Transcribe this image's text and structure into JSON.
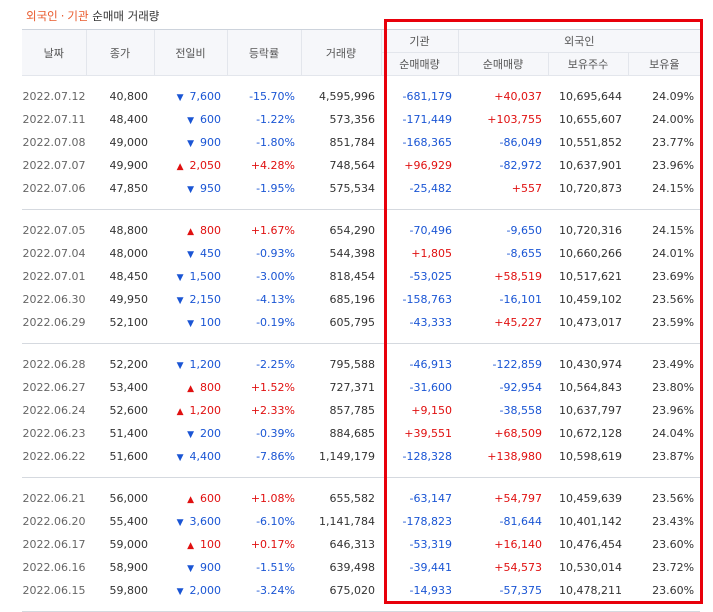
{
  "title": {
    "foreign": "외국인",
    "separator": "·",
    "institution": "기관",
    "rest": "순매매 거래량"
  },
  "headers": {
    "date": "날짜",
    "close": "종가",
    "change": "전일비",
    "rate": "등락률",
    "volume": "거래량",
    "institution_group": "기관",
    "foreign_group": "외국인",
    "inst_net": "순매매량",
    "foreign_net": "순매매량",
    "foreign_shares": "보유주수",
    "foreign_ratio": "보유율"
  },
  "colors": {
    "up": "#e01010",
    "down": "#1a55d4",
    "highlight_border": "#e8000b",
    "title_accent": "#e95a2c"
  },
  "icons": {
    "up": "▲",
    "down": "▼"
  },
  "groups": [
    [
      {
        "date": "2022.07.12",
        "close": "40,800",
        "dir": "down",
        "change": "7,600",
        "rate": "-15.70%",
        "volume": "4,595,996",
        "inst": "-681,179",
        "foreign": "+40,037",
        "shares": "10,695,644",
        "ratio": "24.09%"
      },
      {
        "date": "2022.07.11",
        "close": "48,400",
        "dir": "down",
        "change": "600",
        "rate": "-1.22%",
        "volume": "573,356",
        "inst": "-171,449",
        "foreign": "+103,755",
        "shares": "10,655,607",
        "ratio": "24.00%"
      },
      {
        "date": "2022.07.08",
        "close": "49,000",
        "dir": "down",
        "change": "900",
        "rate": "-1.80%",
        "volume": "851,784",
        "inst": "-168,365",
        "foreign": "-86,049",
        "shares": "10,551,852",
        "ratio": "23.77%"
      },
      {
        "date": "2022.07.07",
        "close": "49,900",
        "dir": "up",
        "change": "2,050",
        "rate": "+4.28%",
        "volume": "748,564",
        "inst": "+96,929",
        "foreign": "-82,972",
        "shares": "10,637,901",
        "ratio": "23.96%"
      },
      {
        "date": "2022.07.06",
        "close": "47,850",
        "dir": "down",
        "change": "950",
        "rate": "-1.95%",
        "volume": "575,534",
        "inst": "-25,482",
        "foreign": "+557",
        "shares": "10,720,873",
        "ratio": "24.15%"
      }
    ],
    [
      {
        "date": "2022.07.05",
        "close": "48,800",
        "dir": "up",
        "change": "800",
        "rate": "+1.67%",
        "volume": "654,290",
        "inst": "-70,496",
        "foreign": "-9,650",
        "shares": "10,720,316",
        "ratio": "24.15%"
      },
      {
        "date": "2022.07.04",
        "close": "48,000",
        "dir": "down",
        "change": "450",
        "rate": "-0.93%",
        "volume": "544,398",
        "inst": "+1,805",
        "foreign": "-8,655",
        "shares": "10,660,266",
        "ratio": "24.01%"
      },
      {
        "date": "2022.07.01",
        "close": "48,450",
        "dir": "down",
        "change": "1,500",
        "rate": "-3.00%",
        "volume": "818,454",
        "inst": "-53,025",
        "foreign": "+58,519",
        "shares": "10,517,621",
        "ratio": "23.69%"
      },
      {
        "date": "2022.06.30",
        "close": "49,950",
        "dir": "down",
        "change": "2,150",
        "rate": "-4.13%",
        "volume": "685,196",
        "inst": "-158,763",
        "foreign": "-16,101",
        "shares": "10,459,102",
        "ratio": "23.56%"
      },
      {
        "date": "2022.06.29",
        "close": "52,100",
        "dir": "down",
        "change": "100",
        "rate": "-0.19%",
        "volume": "605,795",
        "inst": "-43,333",
        "foreign": "+45,227",
        "shares": "10,473,017",
        "ratio": "23.59%"
      }
    ],
    [
      {
        "date": "2022.06.28",
        "close": "52,200",
        "dir": "down",
        "change": "1,200",
        "rate": "-2.25%",
        "volume": "795,588",
        "inst": "-46,913",
        "foreign": "-122,859",
        "shares": "10,430,974",
        "ratio": "23.49%"
      },
      {
        "date": "2022.06.27",
        "close": "53,400",
        "dir": "up",
        "change": "800",
        "rate": "+1.52%",
        "volume": "727,371",
        "inst": "-31,600",
        "foreign": "-92,954",
        "shares": "10,564,843",
        "ratio": "23.80%"
      },
      {
        "date": "2022.06.24",
        "close": "52,600",
        "dir": "up",
        "change": "1,200",
        "rate": "+2.33%",
        "volume": "857,785",
        "inst": "+9,150",
        "foreign": "-38,558",
        "shares": "10,637,797",
        "ratio": "23.96%"
      },
      {
        "date": "2022.06.23",
        "close": "51,400",
        "dir": "down",
        "change": "200",
        "rate": "-0.39%",
        "volume": "884,685",
        "inst": "+39,551",
        "foreign": "+68,509",
        "shares": "10,672,128",
        "ratio": "24.04%"
      },
      {
        "date": "2022.06.22",
        "close": "51,600",
        "dir": "down",
        "change": "4,400",
        "rate": "-7.86%",
        "volume": "1,149,179",
        "inst": "-128,328",
        "foreign": "+138,980",
        "shares": "10,598,619",
        "ratio": "23.87%"
      }
    ],
    [
      {
        "date": "2022.06.21",
        "close": "56,000",
        "dir": "up",
        "change": "600",
        "rate": "+1.08%",
        "volume": "655,582",
        "inst": "-63,147",
        "foreign": "+54,797",
        "shares": "10,459,639",
        "ratio": "23.56%"
      },
      {
        "date": "2022.06.20",
        "close": "55,400",
        "dir": "down",
        "change": "3,600",
        "rate": "-6.10%",
        "volume": "1,141,784",
        "inst": "-178,823",
        "foreign": "-81,644",
        "shares": "10,401,142",
        "ratio": "23.43%"
      },
      {
        "date": "2022.06.17",
        "close": "59,000",
        "dir": "up",
        "change": "100",
        "rate": "+0.17%",
        "volume": "646,313",
        "inst": "-53,319",
        "foreign": "+16,140",
        "shares": "10,476,454",
        "ratio": "23.60%"
      },
      {
        "date": "2022.06.16",
        "close": "58,900",
        "dir": "down",
        "change": "900",
        "rate": "-1.51%",
        "volume": "639,498",
        "inst": "-39,441",
        "foreign": "+54,573",
        "shares": "10,530,014",
        "ratio": "23.72%"
      },
      {
        "date": "2022.06.15",
        "close": "59,800",
        "dir": "down",
        "change": "2,000",
        "rate": "-3.24%",
        "volume": "675,020",
        "inst": "-14,933",
        "foreign": "-57,375",
        "shares": "10,478,211",
        "ratio": "23.60%"
      }
    ]
  ]
}
